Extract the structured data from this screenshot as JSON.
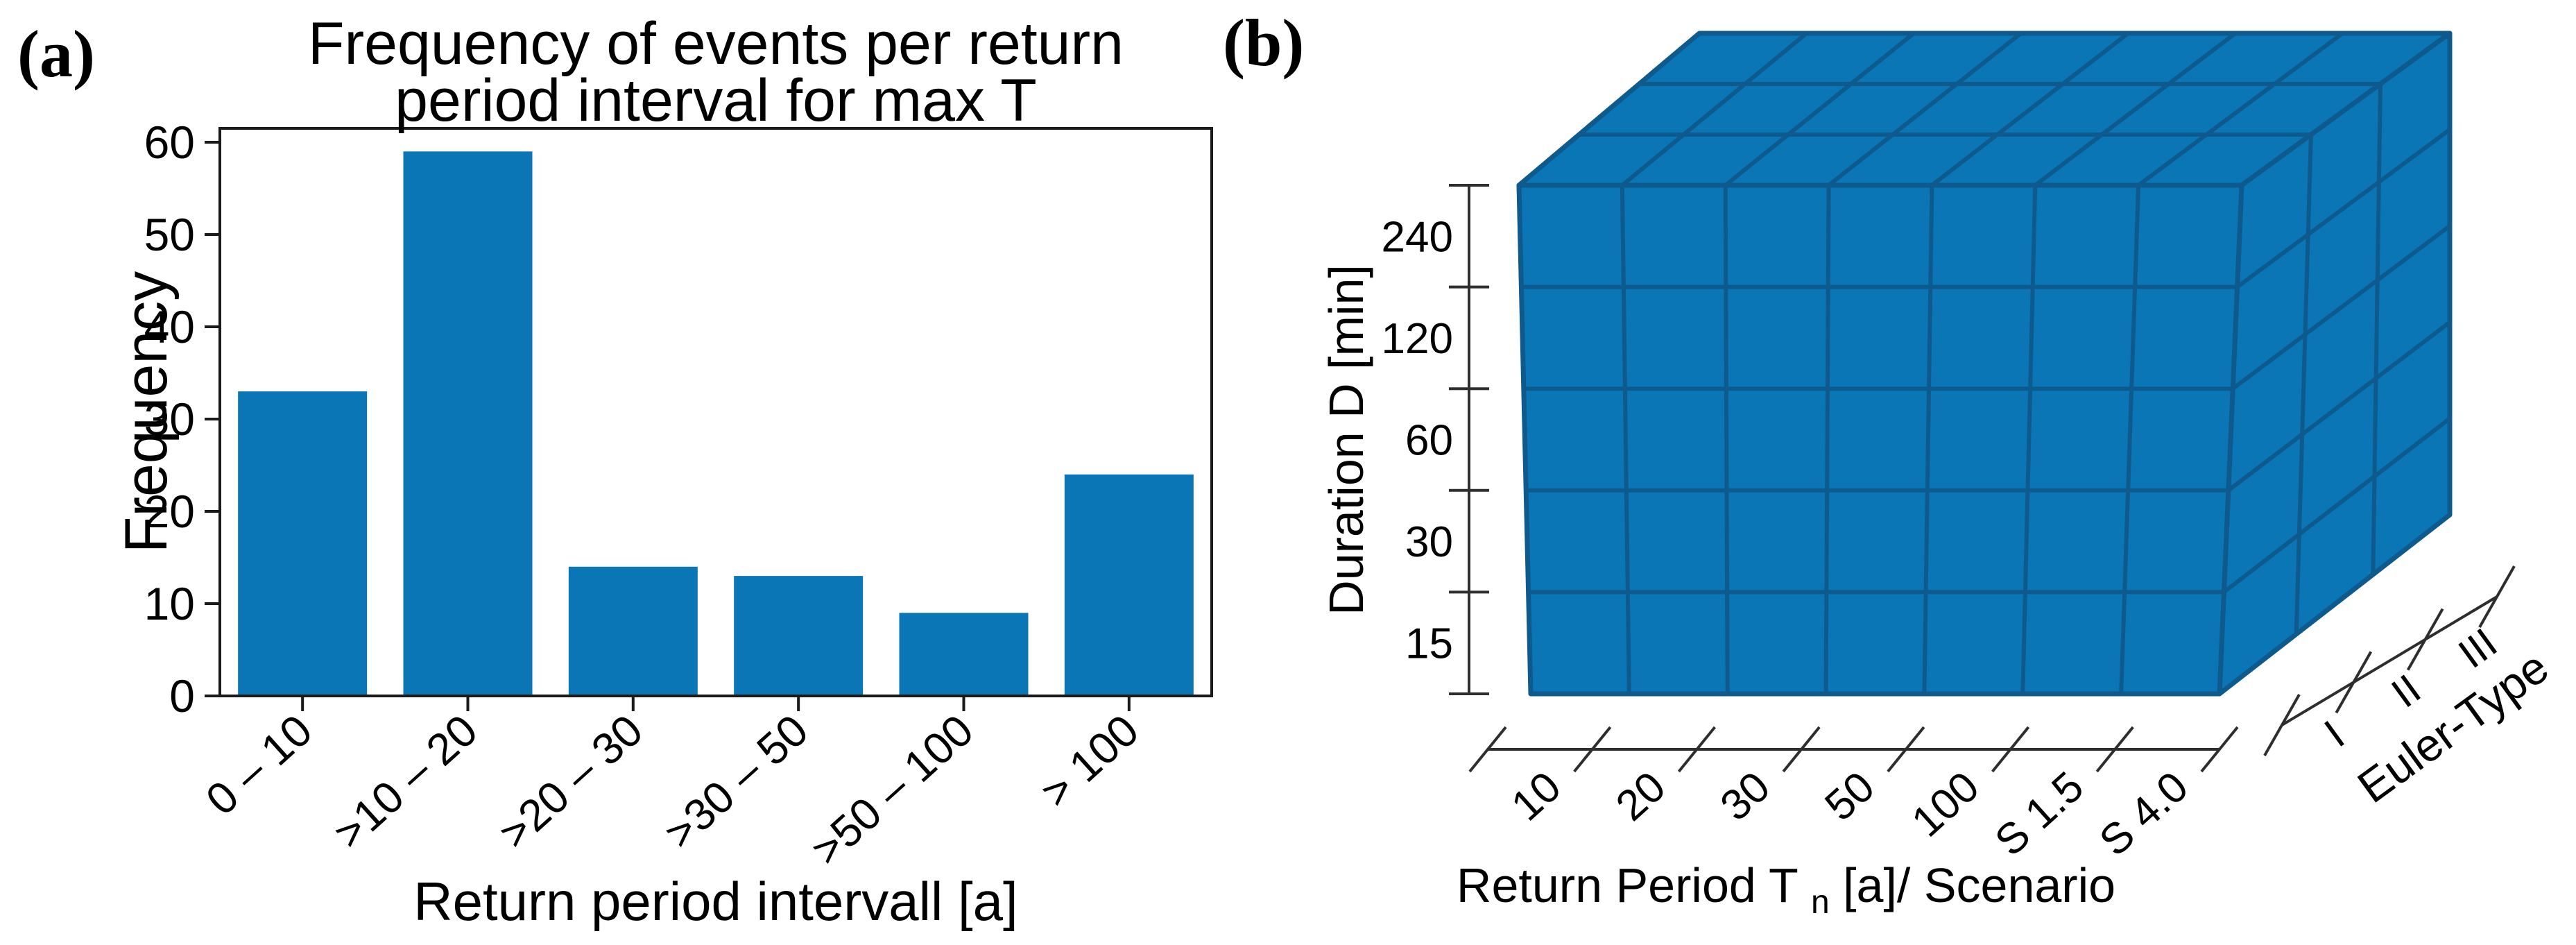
{
  "figure": {
    "panel_a_label": "(a)",
    "panel_b_label": "(b)",
    "background_color": "#ffffff"
  },
  "chart_data": [
    {
      "panel": "a",
      "type": "bar",
      "title_lines": [
        "Frequency of events per return",
        "period interval for max T"
      ],
      "categories": [
        "0 – 10",
        ">10 – 20",
        ">20 – 30",
        ">30 – 50",
        ">50 – 100",
        "> 100"
      ],
      "values": [
        33,
        59,
        14,
        13,
        9,
        24
      ],
      "xlabel": "Return period intervall [a]",
      "ylabel": "Frequency",
      "yticks": [
        0,
        10,
        20,
        30,
        40,
        50,
        60
      ],
      "ylim": [
        0,
        61.5
      ],
      "grid": false,
      "legend_position": "none",
      "tick_label_rotation_deg": -42,
      "bar_color": "#0b76b5",
      "axis_color": "#1a1a1a"
    },
    {
      "panel": "b",
      "type": "3d-voxel-grid",
      "xlabel_parts": {
        "pre": "Return Period T",
        "sub": "n",
        "post": " [a]/ Scenario"
      },
      "ylabel": "Duration D [min]",
      "depth_label": "Euler-Type",
      "xticklabels": [
        "10",
        "20",
        "30",
        "50",
        "100",
        "S 1.5",
        "S 4.0"
      ],
      "yticklabels": [
        "240",
        "120",
        "60",
        "30",
        "15"
      ],
      "depth_ticklabels": [
        "I",
        "II",
        "III"
      ],
      "dims": {
        "columns": 7,
        "rows": 5,
        "depth": 3
      },
      "tick_label_rotation_deg": -42,
      "face_color": "#0a76b6",
      "grid_line_color": "#0f5a8c",
      "axis_color": "#2e2e2e"
    }
  ]
}
